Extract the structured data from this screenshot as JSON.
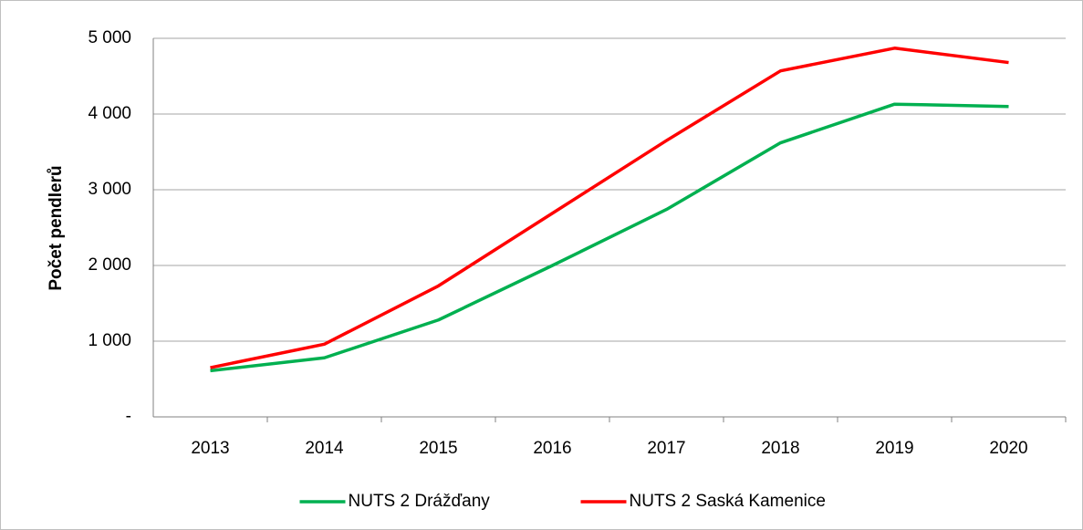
{
  "chart_data": {
    "type": "line",
    "y_label": "Počet pendlerů",
    "categories": [
      "2013",
      "2014",
      "2015",
      "2016",
      "2017",
      "2018",
      "2019",
      "2020"
    ],
    "series": [
      {
        "name": "NUTS  2 Drážďany",
        "color": "#00b050",
        "values": [
          610,
          780,
          1280,
          2000,
          2740,
          3620,
          4130,
          4100
        ]
      },
      {
        "name": "NUTS  2 Saská Kamenice",
        "color": "#ff0000",
        "values": [
          650,
          960,
          1730,
          2690,
          3650,
          4570,
          4870,
          4680
        ]
      }
    ],
    "ylim": [
      0,
      5000
    ],
    "yticks": [
      {
        "value": 0,
        "label": "-"
      },
      {
        "value": 1000,
        "label": "1 000"
      },
      {
        "value": 2000,
        "label": "2 000"
      },
      {
        "value": 3000,
        "label": "3 000"
      },
      {
        "value": 4000,
        "label": "4 000"
      },
      {
        "value": 5000,
        "label": "5 000"
      }
    ],
    "grid": true,
    "legend": "bottom"
  }
}
